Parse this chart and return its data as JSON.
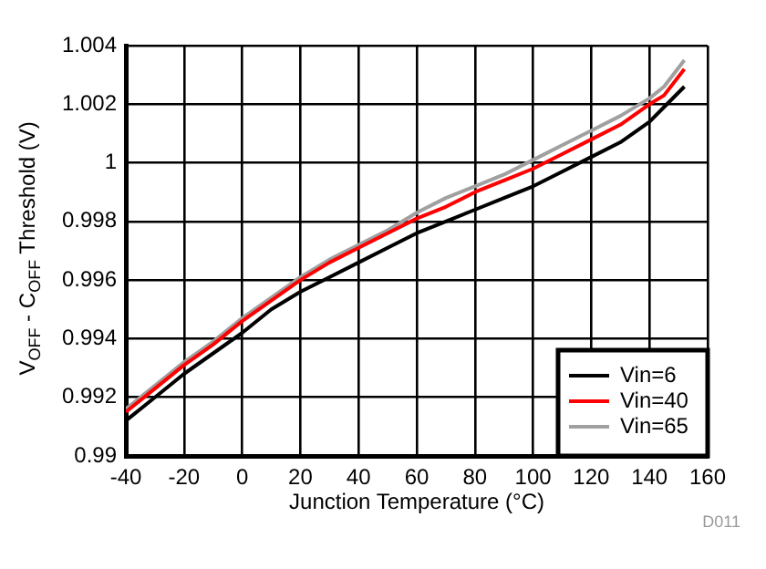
{
  "chart_data": {
    "type": "line",
    "xlabel": "Junction Temperature (°C)",
    "ylabel": "V$_{OFF}$ - C$_{OFF}$ Threshold (V)",
    "x": [
      -40,
      -30,
      -20,
      -10,
      0,
      10,
      20,
      30,
      40,
      50,
      60,
      70,
      80,
      90,
      100,
      110,
      120,
      130,
      140,
      145,
      152
    ],
    "series": [
      {
        "name": "Vin=6",
        "color": "#000000",
        "values": [
          0.9912,
          0.992,
          0.9928,
          0.9935,
          0.9942,
          0.995,
          0.9956,
          0.9961,
          0.9966,
          0.9971,
          0.9976,
          0.998,
          0.9984,
          0.9988,
          0.9992,
          0.9997,
          1.0002,
          1.0007,
          1.0014,
          1.0019,
          1.0026
        ]
      },
      {
        "name": "Vin=40",
        "color": "#ff0000",
        "values": [
          0.9915,
          0.9923,
          0.9931,
          0.9938,
          0.9946,
          0.9953,
          0.996,
          0.9966,
          0.9971,
          0.9976,
          0.9981,
          0.9985,
          0.999,
          0.9994,
          0.9998,
          1.0003,
          1.0008,
          1.0013,
          1.002,
          1.0023,
          1.0032
        ]
      },
      {
        "name": "Vin=65",
        "color": "#a0a0a0",
        "values": [
          0.9916,
          0.9924,
          0.9932,
          0.9939,
          0.9947,
          0.9954,
          0.9961,
          0.9967,
          0.9972,
          0.9977,
          0.9983,
          0.9988,
          0.9992,
          0.9996,
          1.0001,
          1.0006,
          1.0011,
          1.0016,
          1.0022,
          1.0026,
          1.0035
        ]
      }
    ],
    "xlim": [
      -40,
      160
    ],
    "xticks": [
      -40,
      -20,
      0,
      20,
      40,
      60,
      80,
      100,
      120,
      140,
      160
    ],
    "ylim": [
      0.99,
      1.004
    ],
    "yticks": [
      0.99,
      0.992,
      0.994,
      0.996,
      0.998,
      1,
      1.002,
      1.004
    ],
    "grid": true,
    "legend": "bottom right",
    "marker": "none",
    "line_style": "solid",
    "annotations": [
      "D011"
    ]
  }
}
